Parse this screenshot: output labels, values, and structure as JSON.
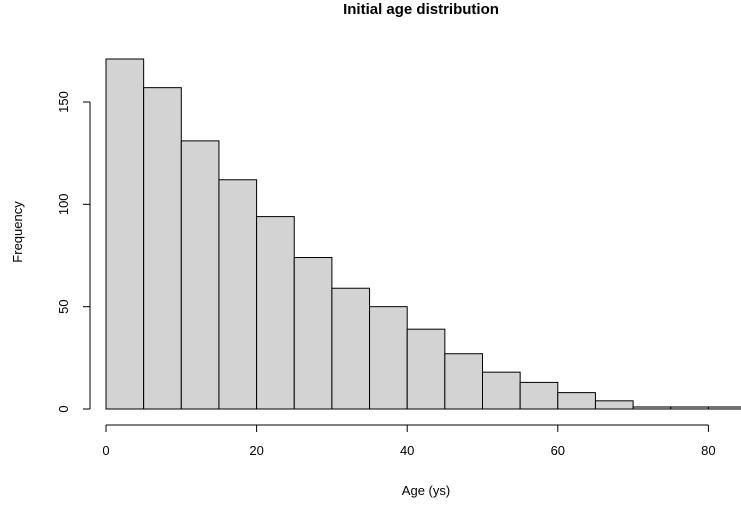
{
  "chart_data": {
    "type": "bar",
    "title": "Initial age distribution",
    "xlabel": "Age (ys)",
    "ylabel": "Frequency",
    "bin_width": 5,
    "bins": [
      {
        "start": 0,
        "end": 5,
        "count": 171
      },
      {
        "start": 5,
        "end": 10,
        "count": 157
      },
      {
        "start": 10,
        "end": 15,
        "count": 131
      },
      {
        "start": 15,
        "end": 20,
        "count": 112
      },
      {
        "start": 20,
        "end": 25,
        "count": 94
      },
      {
        "start": 25,
        "end": 30,
        "count": 74
      },
      {
        "start": 30,
        "end": 35,
        "count": 59
      },
      {
        "start": 35,
        "end": 40,
        "count": 50
      },
      {
        "start": 40,
        "end": 45,
        "count": 39
      },
      {
        "start": 45,
        "end": 50,
        "count": 27
      },
      {
        "start": 50,
        "end": 55,
        "count": 18
      },
      {
        "start": 55,
        "end": 60,
        "count": 13
      },
      {
        "start": 60,
        "end": 65,
        "count": 8
      },
      {
        "start": 65,
        "end": 70,
        "count": 4
      },
      {
        "start": 70,
        "end": 75,
        "count": 1
      },
      {
        "start": 75,
        "end": 80,
        "count": 1
      },
      {
        "start": 80,
        "end": 85,
        "count": 1
      }
    ],
    "x_ticks": [
      0,
      20,
      40,
      60,
      80
    ],
    "y_ticks": [
      0,
      50,
      100,
      150
    ],
    "xlim": [
      0,
      85
    ],
    "ylim": [
      0,
      171
    ],
    "grid": false,
    "bar_color": "#d3d3d3",
    "edge_color": "#000000"
  }
}
